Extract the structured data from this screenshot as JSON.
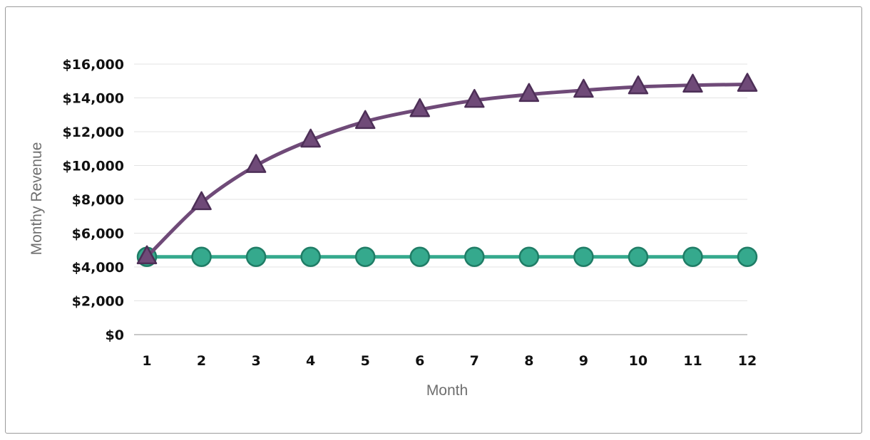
{
  "chart_data": {
    "type": "line",
    "title": "",
    "xlabel": "Month",
    "ylabel": "Monthy Revenue",
    "x": [
      1,
      2,
      3,
      4,
      5,
      6,
      7,
      8,
      9,
      10,
      11,
      12
    ],
    "ylim": [
      0,
      16000
    ],
    "yticks": [
      0,
      2000,
      4000,
      6000,
      8000,
      10000,
      12000,
      14000,
      16000
    ],
    "ytick_labels": [
      "$0",
      "$2,000",
      "$4,000",
      "$6,000",
      "$8,000",
      "$10,000",
      "$12,000",
      "$14,000",
      "$16,000"
    ],
    "grid": true,
    "legend": "none",
    "series": [
      {
        "marker": "triangle",
        "color": "#6f4a78",
        "curve": "smooth",
        "values": [
          4600,
          7800,
          10000,
          11500,
          12600,
          13300,
          13850,
          14200,
          14450,
          14650,
          14750,
          14800
        ]
      },
      {
        "marker": "circle",
        "color": "#35a98d",
        "curve": "straight",
        "values": [
          4600,
          4600,
          4600,
          4600,
          4600,
          4600,
          4600,
          4600,
          4600,
          4600,
          4600,
          4600
        ]
      }
    ]
  }
}
